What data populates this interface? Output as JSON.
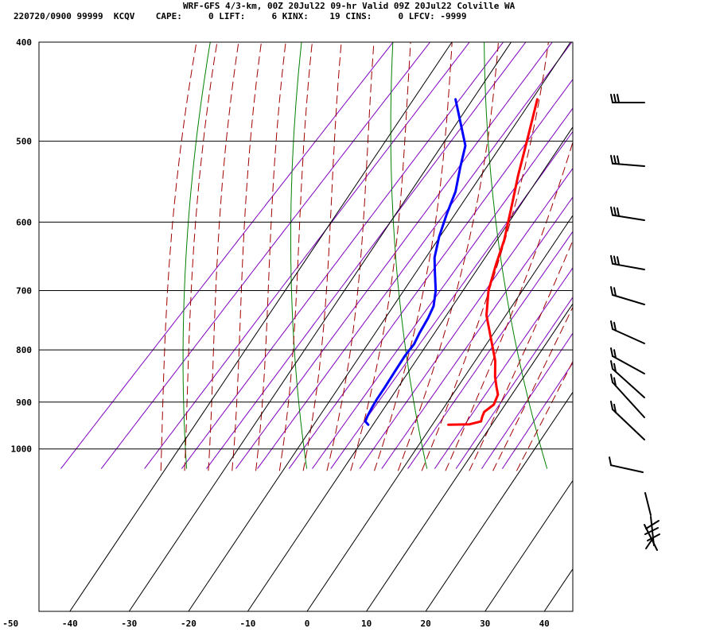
{
  "header": {
    "title": "WRF-GFS 4/3-km, 00Z 20Jul22 09-hr Valid 09Z 20Jul22 Colville WA",
    "stats": "220720/0900 99999  KCQV    CAPE:     0 LIFT:     6 KINX:    19 CINS:     0 LFCV: -9999"
  },
  "colors": {
    "temperature": "#ff0000",
    "dewpoint": "#0000ff",
    "dry_adiabat": "#008000",
    "moist_adiabat": "#a00000",
    "mixing_ratio": "#8000c0",
    "grid": "#000000"
  },
  "chart_data": {
    "type": "line",
    "title": "",
    "xlabel": "",
    "ylabel": "",
    "x_ticks": [
      -50,
      -40,
      -30,
      -20,
      -10,
      0,
      10,
      20,
      30,
      40
    ],
    "y_ticks": [
      400,
      500,
      600,
      700,
      800,
      900,
      1000
    ],
    "xlim": [
      -50,
      40
    ],
    "ylim": [
      1040,
      400
    ],
    "y_scale": "log-pressure",
    "grid": true,
    "series": [
      {
        "key": "temperature",
        "points": [
          {
            "p": 947,
            "t": 17.5
          },
          {
            "p": 946,
            "t": 21.0
          },
          {
            "p": 940,
            "t": 22.5
          },
          {
            "p": 930,
            "t": 22.0
          },
          {
            "p": 920,
            "t": 21.6
          },
          {
            "p": 905,
            "t": 22.1
          },
          {
            "p": 885,
            "t": 21.3
          },
          {
            "p": 870,
            "t": 19.9
          },
          {
            "p": 850,
            "t": 18.1
          },
          {
            "p": 820,
            "t": 15.7
          },
          {
            "p": 780,
            "t": 11.6
          },
          {
            "p": 740,
            "t": 7.3
          },
          {
            "p": 700,
            "t": 3.9
          },
          {
            "p": 660,
            "t": 1.2
          },
          {
            "p": 625,
            "t": -1.1
          },
          {
            "p": 580,
            "t": -4.9
          },
          {
            "p": 540,
            "t": -8.6
          },
          {
            "p": 500,
            "t": -12.3
          },
          {
            "p": 455,
            "t": -16.9
          }
        ]
      },
      {
        "key": "dewpoint",
        "points": [
          {
            "p": 947,
            "t": 4.0
          },
          {
            "p": 940,
            "t": 3.0
          },
          {
            "p": 930,
            "t": 2.6
          },
          {
            "p": 910,
            "t": 2.0
          },
          {
            "p": 895,
            "t": 1.6
          },
          {
            "p": 870,
            "t": 1.1
          },
          {
            "p": 840,
            "t": 0.4
          },
          {
            "p": 810,
            "t": -0.3
          },
          {
            "p": 790,
            "t": -0.5
          },
          {
            "p": 770,
            "t": -1.3
          },
          {
            "p": 745,
            "t": -2.1
          },
          {
            "p": 725,
            "t": -3.0
          },
          {
            "p": 700,
            "t": -5.0
          },
          {
            "p": 670,
            "t": -8.1
          },
          {
            "p": 650,
            "t": -10.2
          },
          {
            "p": 620,
            "t": -12.6
          },
          {
            "p": 590,
            "t": -14.7
          },
          {
            "p": 560,
            "t": -16.7
          },
          {
            "p": 530,
            "t": -19.6
          },
          {
            "p": 505,
            "t": -22.0
          },
          {
            "p": 455,
            "t": -30.7
          }
        ]
      }
    ]
  }
}
